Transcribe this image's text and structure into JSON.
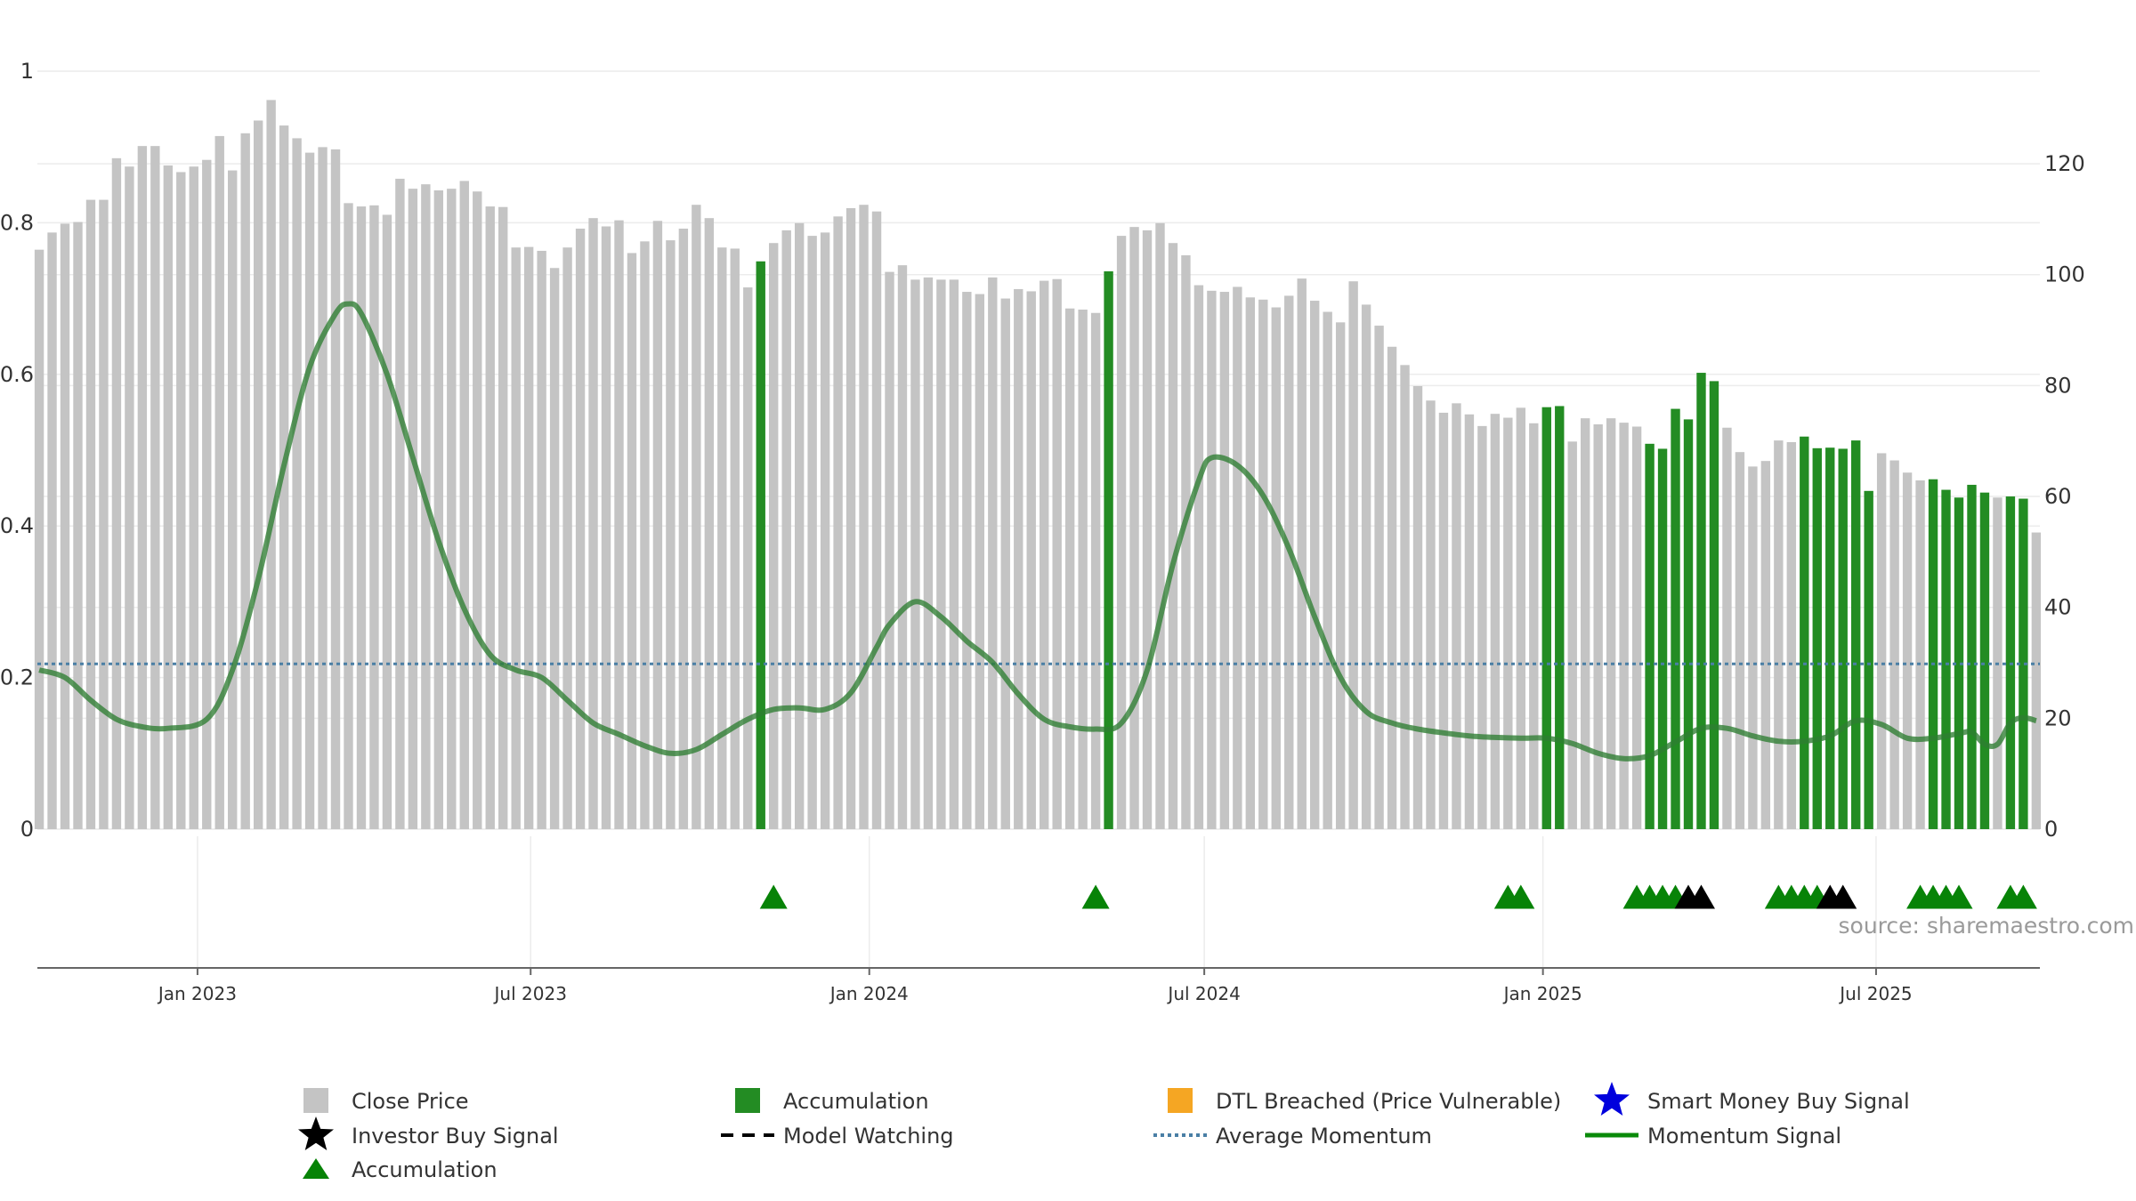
{
  "source_text": "source: sharemaestro.com",
  "colors": {
    "close_price": "#c4c4c4",
    "accumulation": "#238c23",
    "momentum": "#2e7d32",
    "average_momentum": "#4a7fa5",
    "triangle_accumulation": "#078307",
    "triangle_investor": "#000000",
    "dtl_breached": "#f5a623",
    "smart_money": "#0000dd"
  },
  "chart_data": {
    "type": "bar",
    "x_tick_labels": [
      "Jan 2023",
      "Jul 2023",
      "Jan 2024",
      "Jul 2024",
      "Jan 2025",
      "Jul 2025"
    ],
    "x_tick_dates": [
      "2023-01-01",
      "2023-07-01",
      "2024-01-01",
      "2024-07-01",
      "2025-01-01",
      "2025-07-01"
    ],
    "x_range": [
      "2022-10-06",
      "2025-09-28"
    ],
    "left_axis": {
      "ticks": [
        "0",
        "0.2",
        "0.4",
        "0.6",
        "0.8",
        "1"
      ],
      "range": [
        0,
        1
      ]
    },
    "right_axis": {
      "ticks": [
        "0",
        "20",
        "40",
        "60",
        "80",
        "100",
        "120"
      ],
      "range": [
        0,
        136.7
      ]
    },
    "grid": "horizontal",
    "bar_dates": [
      "2022-10-07",
      "2022-10-14",
      "2022-10-21",
      "2022-10-28",
      "2022-11-04",
      "2022-11-11",
      "2022-11-18",
      "2022-11-25",
      "2022-12-02",
      "2022-12-09",
      "2022-12-16",
      "2022-12-23",
      "2022-12-30",
      "2023-01-06",
      "2023-01-13",
      "2023-01-20",
      "2023-01-27",
      "2023-02-03",
      "2023-02-10",
      "2023-02-17",
      "2023-02-24",
      "2023-03-03",
      "2023-03-10",
      "2023-03-17",
      "2023-03-24",
      "2023-03-31",
      "2023-04-07",
      "2023-04-14",
      "2023-04-21",
      "2023-04-28",
      "2023-05-05",
      "2023-05-12",
      "2023-05-19",
      "2023-05-26",
      "2023-06-02",
      "2023-06-09",
      "2023-06-16",
      "2023-06-23",
      "2023-06-30",
      "2023-07-07",
      "2023-07-14",
      "2023-07-21",
      "2023-07-28",
      "2023-08-04",
      "2023-08-11",
      "2023-08-18",
      "2023-08-25",
      "2023-09-01",
      "2023-09-08",
      "2023-09-15",
      "2023-09-22",
      "2023-09-29",
      "2023-10-06",
      "2023-10-13",
      "2023-10-20",
      "2023-10-27",
      "2023-11-03",
      "2023-11-10",
      "2023-11-17",
      "2023-11-24",
      "2023-12-01",
      "2023-12-08",
      "2023-12-15",
      "2023-12-22",
      "2023-12-29",
      "2024-01-05",
      "2024-01-12",
      "2024-01-19",
      "2024-01-26",
      "2024-02-02",
      "2024-02-09",
      "2024-02-16",
      "2024-02-23",
      "2024-03-01",
      "2024-03-08",
      "2024-03-15",
      "2024-03-22",
      "2024-03-29",
      "2024-04-05",
      "2024-04-12",
      "2024-04-19",
      "2024-04-26",
      "2024-05-03",
      "2024-05-10",
      "2024-05-17",
      "2024-05-24",
      "2024-05-31",
      "2024-06-07",
      "2024-06-14",
      "2024-06-21",
      "2024-06-28",
      "2024-07-05",
      "2024-07-12",
      "2024-07-19",
      "2024-07-26",
      "2024-08-02",
      "2024-08-09",
      "2024-08-16",
      "2024-08-23",
      "2024-08-30",
      "2024-09-06",
      "2024-09-13",
      "2024-09-20",
      "2024-09-27",
      "2024-10-04",
      "2024-10-11",
      "2024-10-18",
      "2024-10-25",
      "2024-11-01",
      "2024-11-08",
      "2024-11-15",
      "2024-11-22",
      "2024-11-29",
      "2024-12-06",
      "2024-12-13",
      "2024-12-20",
      "2024-12-27",
      "2025-01-03",
      "2025-01-10",
      "2025-01-17",
      "2025-01-24",
      "2025-01-31",
      "2025-02-07",
      "2025-02-14",
      "2025-02-21",
      "2025-02-28",
      "2025-03-07",
      "2025-03-14",
      "2025-03-21",
      "2025-03-28",
      "2025-04-04",
      "2025-04-11",
      "2025-04-18",
      "2025-04-25",
      "2025-05-02",
      "2025-05-09",
      "2025-05-16",
      "2025-05-23",
      "2025-05-30",
      "2025-06-06",
      "2025-06-13",
      "2025-06-20",
      "2025-06-27",
      "2025-07-04",
      "2025-07-11",
      "2025-07-18",
      "2025-07-25",
      "2025-08-01",
      "2025-08-08",
      "2025-08-15",
      "2025-08-22",
      "2025-08-29",
      "2025-09-05",
      "2025-09-12",
      "2025-09-19",
      "2025-09-26"
    ],
    "series": [
      {
        "name": "Close Price",
        "axis": "right",
        "values": [
          104.5,
          107.6,
          109.2,
          109.5,
          113.5,
          113.5,
          121.0,
          119.5,
          123.2,
          123.2,
          119.7,
          118.5,
          119.5,
          120.7,
          125.0,
          118.8,
          125.5,
          127.8,
          131.5,
          126.9,
          124.6,
          122.0,
          123.0,
          122.6,
          112.9,
          112.3,
          112.5,
          110.8,
          117.3,
          115.5,
          116.3,
          115.2,
          115.5,
          116.9,
          115.0,
          112.3,
          112.2,
          104.9,
          105.0,
          104.3,
          101.2,
          104.9,
          108.3,
          110.2,
          108.7,
          109.8,
          103.9,
          106.0,
          109.7,
          106.2,
          108.3,
          112.6,
          110.2,
          104.9,
          104.7,
          97.7,
          102.4,
          105.7,
          108.0,
          109.3,
          107.0,
          107.6,
          110.5,
          112.0,
          112.6,
          111.4,
          100.5,
          101.7,
          99.1,
          99.5,
          99.1,
          99.1,
          96.9,
          96.5,
          99.5,
          95.7,
          97.4,
          97.0,
          98.9,
          99.2,
          93.9,
          93.7,
          93.1,
          100.6,
          107.0,
          108.6,
          108.0,
          109.3,
          105.7,
          103.5,
          98.1,
          97.1,
          96.9,
          97.8,
          95.9,
          95.5,
          94.1,
          96.2,
          99.3,
          95.3,
          93.3,
          91.4,
          98.8,
          94.6,
          90.8,
          87.0,
          83.7,
          79.9,
          77.3,
          75.1,
          76.8,
          74.8,
          72.7,
          74.9,
          74.2,
          76.0,
          73.2,
          76.1,
          76.3,
          69.9,
          74.1,
          73.0,
          74.1,
          73.3,
          72.6,
          69.5,
          68.6,
          75.8,
          73.9,
          82.3,
          80.8,
          72.4,
          68.0,
          65.4,
          66.4,
          70.1,
          69.8,
          70.8,
          68.7,
          68.8,
          68.6,
          70.1,
          61.0,
          67.8,
          66.5,
          64.3,
          62.9,
          63.1,
          61.2,
          59.8,
          62.1,
          60.7,
          59.8,
          60.0,
          59.6,
          53.5
        ],
        "highlighted_accumulation": [
          56,
          83,
          117,
          118,
          125,
          126,
          127,
          128,
          129,
          130,
          137,
          138,
          139,
          140,
          141,
          142,
          147,
          148,
          149,
          150,
          151,
          153,
          154
        ]
      },
      {
        "name": "Momentum Signal",
        "axis": "left",
        "x": [
          "2022-10-07",
          "2022-10-21",
          "2022-11-04",
          "2022-11-18",
          "2022-12-02",
          "2022-12-16",
          "2023-01-06",
          "2023-01-20",
          "2023-02-03",
          "2023-02-17",
          "2023-03-03",
          "2023-03-17",
          "2023-03-24",
          "2023-03-31",
          "2023-04-14",
          "2023-04-28",
          "2023-05-12",
          "2023-05-26",
          "2023-06-09",
          "2023-06-23",
          "2023-07-07",
          "2023-07-21",
          "2023-08-04",
          "2023-08-18",
          "2023-09-01",
          "2023-09-15",
          "2023-09-29",
          "2023-10-13",
          "2023-10-27",
          "2023-11-10",
          "2023-11-24",
          "2023-12-08",
          "2023-12-22",
          "2024-01-05",
          "2024-01-12",
          "2024-01-26",
          "2024-02-09",
          "2024-02-23",
          "2024-03-08",
          "2024-03-22",
          "2024-04-05",
          "2024-04-19",
          "2024-05-03",
          "2024-05-17",
          "2024-05-31",
          "2024-06-14",
          "2024-06-28",
          "2024-07-05",
          "2024-07-19",
          "2024-08-02",
          "2024-08-16",
          "2024-08-30",
          "2024-09-13",
          "2024-09-27",
          "2024-10-11",
          "2024-10-25",
          "2024-11-08",
          "2024-11-22",
          "2024-12-06",
          "2024-12-20",
          "2025-01-03",
          "2025-01-17",
          "2025-01-31",
          "2025-02-14",
          "2025-02-28",
          "2025-03-14",
          "2025-03-28",
          "2025-04-11",
          "2025-04-25",
          "2025-05-09",
          "2025-05-23",
          "2025-06-06",
          "2025-06-20",
          "2025-07-04",
          "2025-07-18",
          "2025-08-01",
          "2025-08-15",
          "2025-08-22",
          "2025-08-29",
          "2025-09-05",
          "2025-09-12",
          "2025-09-19",
          "2025-09-26"
        ],
        "values": [
          0.21,
          0.2,
          0.17,
          0.145,
          0.135,
          0.133,
          0.145,
          0.21,
          0.33,
          0.48,
          0.61,
          0.68,
          0.693,
          0.68,
          0.6,
          0.49,
          0.38,
          0.29,
          0.23,
          0.21,
          0.2,
          0.17,
          0.14,
          0.125,
          0.11,
          0.1,
          0.105,
          0.125,
          0.145,
          0.158,
          0.16,
          0.158,
          0.18,
          0.24,
          0.27,
          0.3,
          0.28,
          0.248,
          0.22,
          0.178,
          0.145,
          0.135,
          0.132,
          0.14,
          0.21,
          0.35,
          0.46,
          0.49,
          0.48,
          0.44,
          0.37,
          0.28,
          0.2,
          0.155,
          0.14,
          0.132,
          0.127,
          0.123,
          0.121,
          0.12,
          0.12,
          0.113,
          0.1,
          0.093,
          0.097,
          0.115,
          0.133,
          0.133,
          0.123,
          0.116,
          0.116,
          0.123,
          0.143,
          0.138,
          0.12,
          0.12,
          0.126,
          0.128,
          0.112,
          0.112,
          0.14,
          0.147,
          0.143
        ]
      },
      {
        "name": "Average Momentum",
        "axis": "left",
        "value": 0.218
      }
    ],
    "markers": {
      "accumulation": [
        "2023-11-10",
        "2024-05-03",
        "2024-12-13",
        "2024-12-20",
        "2025-02-21",
        "2025-02-28",
        "2025-03-07",
        "2025-03-14",
        "2025-05-09",
        "2025-05-16",
        "2025-05-23",
        "2025-05-30",
        "2025-07-25",
        "2025-08-01",
        "2025-08-08",
        "2025-08-15",
        "2025-09-12",
        "2025-09-19"
      ],
      "investor_buy": [
        "2025-03-21",
        "2025-03-28",
        "2025-06-06",
        "2025-06-13"
      ]
    },
    "legend": {
      "position": "bottom",
      "items": [
        {
          "label": "Close Price",
          "swatch": "square-gray"
        },
        {
          "label": "Accumulation",
          "swatch": "square-green"
        },
        {
          "label": "DTL Breached (Price Vulnerable)",
          "swatch": "square-orange"
        },
        {
          "label": "Smart Money Buy Signal",
          "swatch": "star-blue"
        },
        {
          "label": "Investor Buy Signal",
          "swatch": "star-black"
        },
        {
          "label": "Model Watching",
          "swatch": "dash-black"
        },
        {
          "label": "Average Momentum",
          "swatch": "dot-blue"
        },
        {
          "label": "Momentum Signal",
          "swatch": "line-green"
        },
        {
          "label": "Accumulation",
          "swatch": "triangle-green"
        }
      ]
    }
  }
}
